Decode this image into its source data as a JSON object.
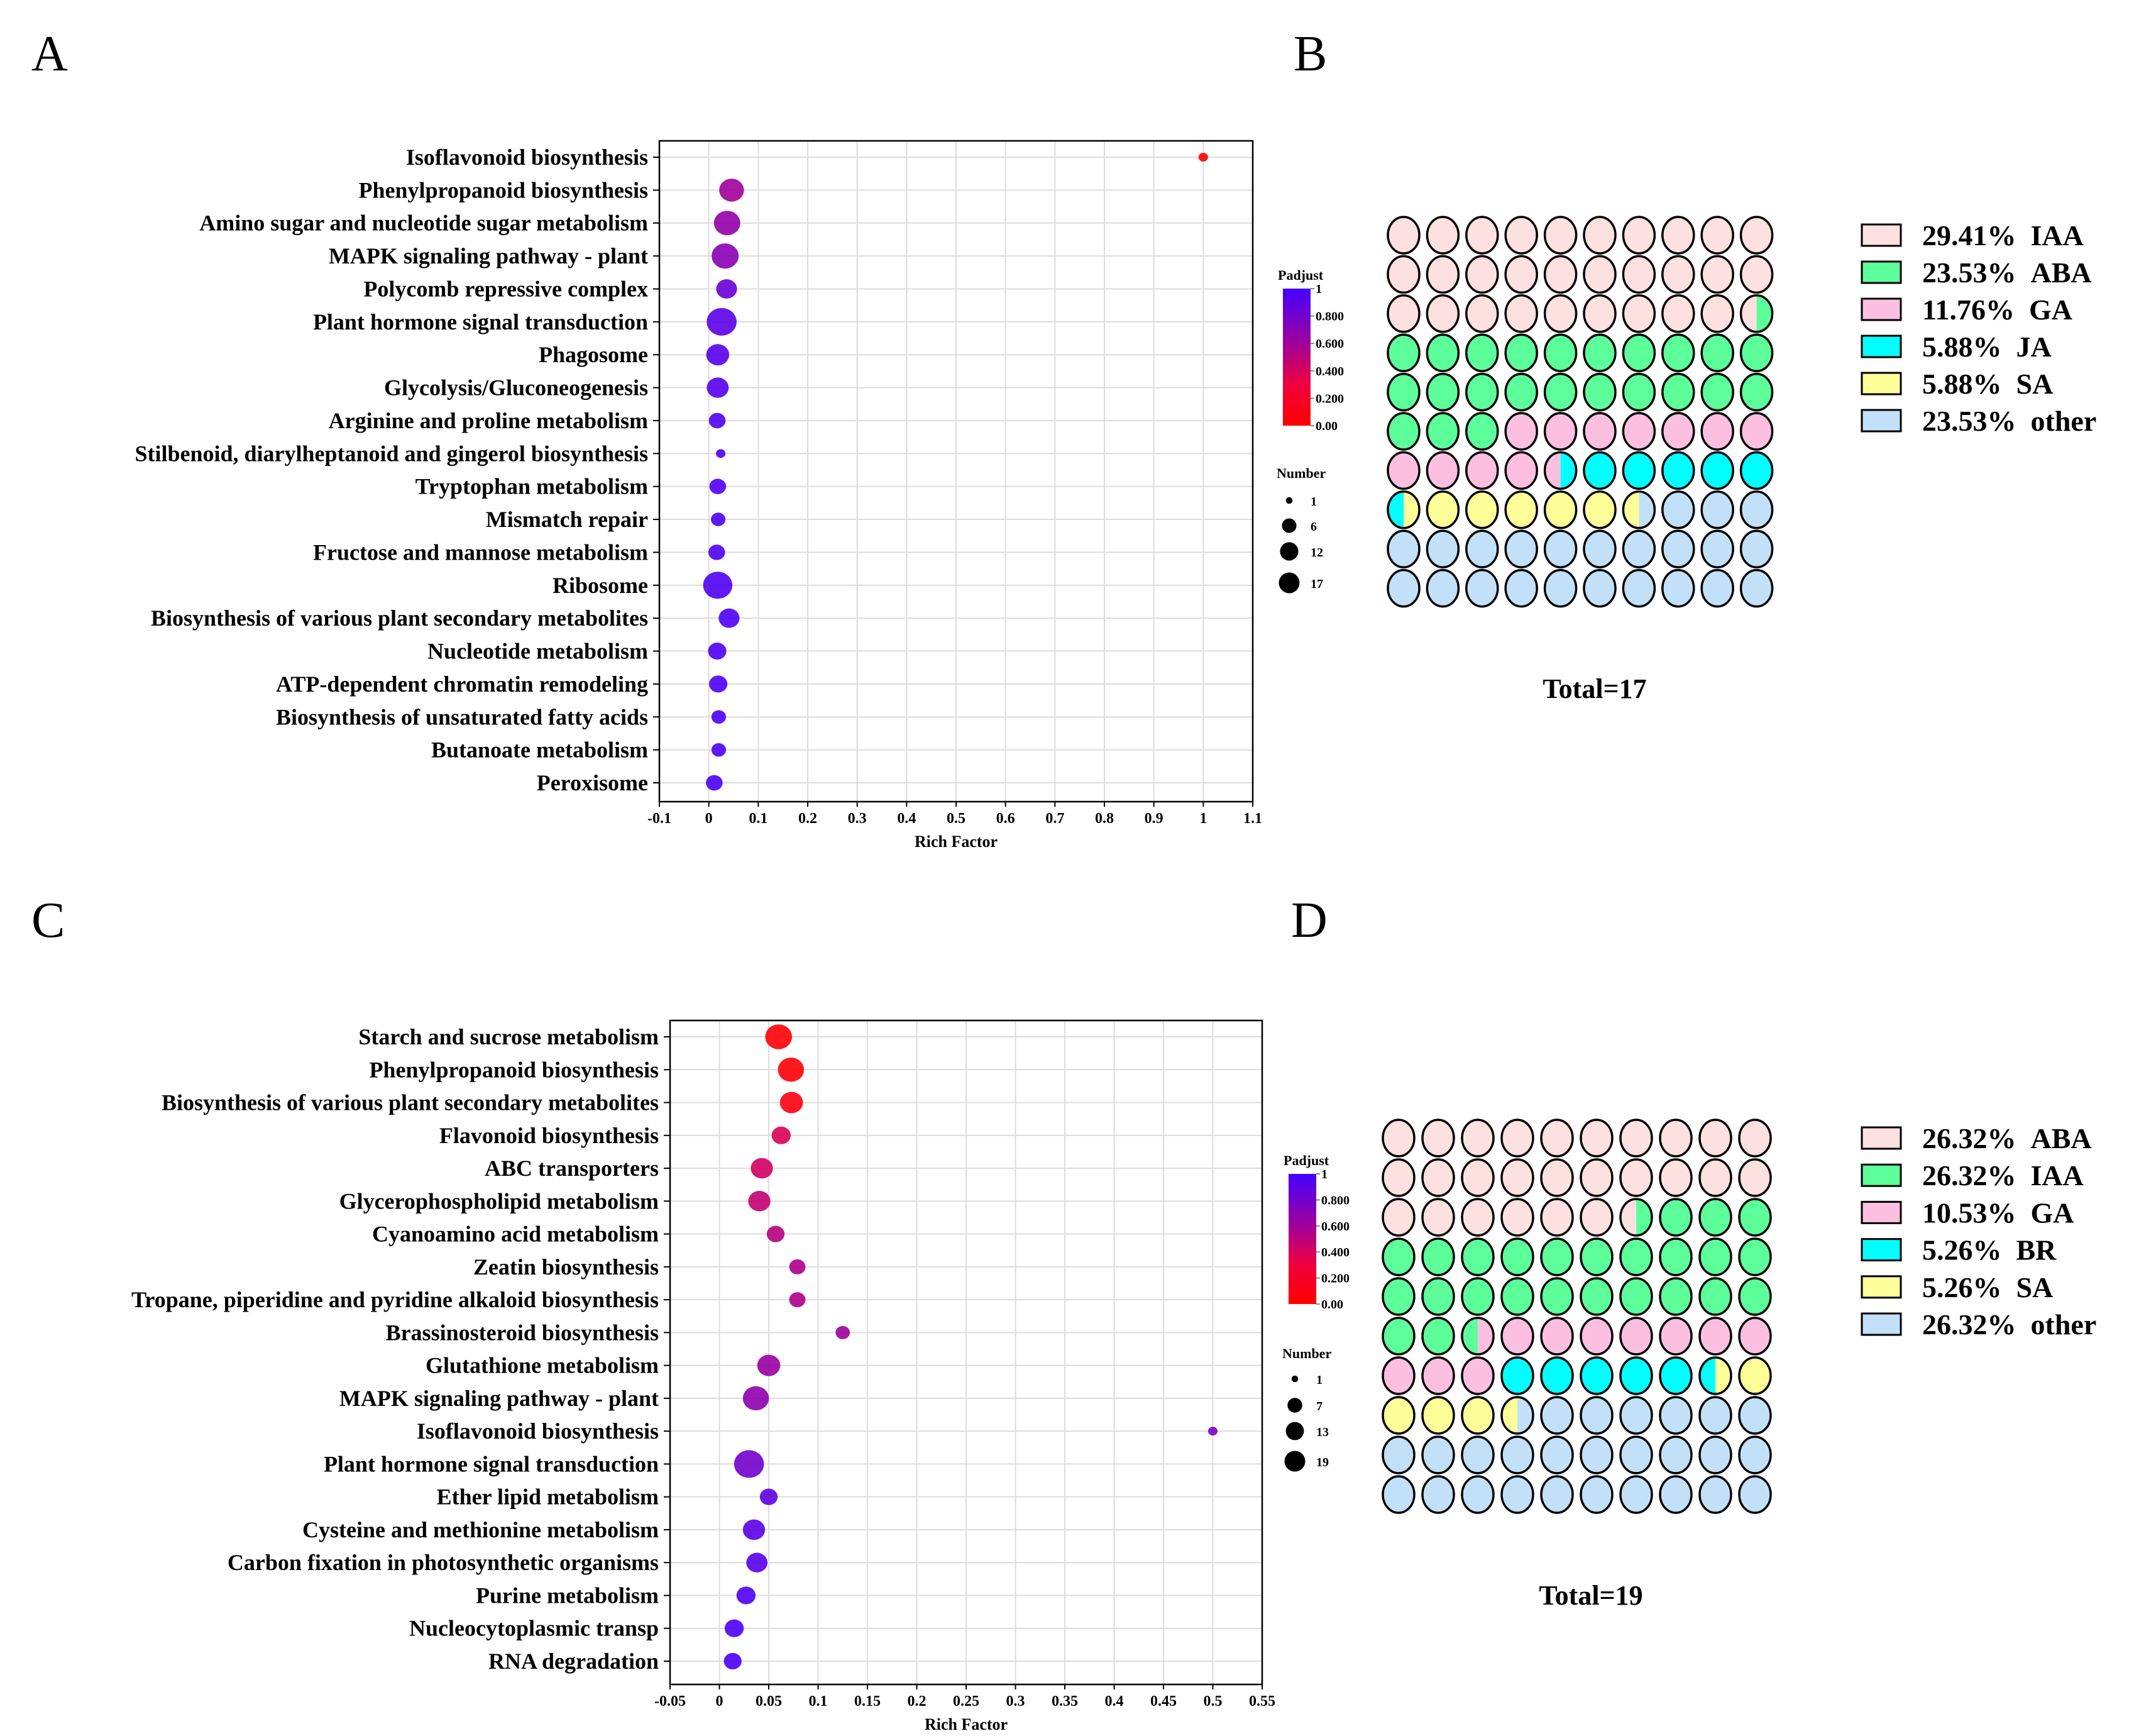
{
  "panels": {
    "a": "A",
    "b": "B",
    "c": "C",
    "d": "D"
  },
  "colors": {
    "padj_low": "#ff0000",
    "padj_high": "#4400ff",
    "IAA_or_first": "#fde0e0",
    "green": "#5cff9a",
    "pink": "#fcbfe0",
    "cyan": "#00ffff",
    "yellow": "#ffff99",
    "other": "#c2e0f7"
  },
  "chart_data": [
    {
      "id": "A",
      "type": "scatter",
      "xlabel": "Rich Factor",
      "xlim": [
        -0.1,
        1.1
      ],
      "xticks": [
        "-0.1",
        "0",
        "0.1",
        "0.2",
        "0.3",
        "0.4",
        "0.5",
        "0.6",
        "0.7",
        "0.8",
        "0.9",
        "1",
        "1.1"
      ],
      "color_legend": {
        "title": "Padjust",
        "ticks": [
          "1",
          "0.800",
          "0.600",
          "0.400",
          "0.200",
          "0.00"
        ]
      },
      "size_legend": {
        "title": "Number",
        "values": [
          1,
          6,
          12,
          17
        ]
      },
      "points": [
        {
          "term": "Isoflavonoid biosynthesis",
          "rich": 1.0,
          "number": 1,
          "padj": 0.0
        },
        {
          "term": "Phenylpropanoid biosynthesis",
          "rich": 0.046,
          "number": 10,
          "padj": 0.6
        },
        {
          "term": "Amino sugar and nucleotide sugar metabolism",
          "rich": 0.037,
          "number": 12,
          "padj": 0.66
        },
        {
          "term": "MAPK signaling pathway - plant",
          "rich": 0.033,
          "number": 13,
          "padj": 0.7
        },
        {
          "term": "Polycomb repressive complex",
          "rich": 0.036,
          "number": 6,
          "padj": 0.85
        },
        {
          "term": "Plant hormone signal transduction",
          "rich": 0.026,
          "number": 17,
          "padj": 0.9
        },
        {
          "term": "Phagosome",
          "rich": 0.018,
          "number": 8,
          "padj": 0.92
        },
        {
          "term": "Glycolysis/Gluconeogenesis",
          "rich": 0.018,
          "number": 7,
          "padj": 0.93
        },
        {
          "term": "Arginine and proline metabolism",
          "rich": 0.017,
          "number": 3,
          "padj": 0.94
        },
        {
          "term": "Stilbenoid, diarylheptanoid and gingerol biosynthesis",
          "rich": 0.024,
          "number": 1,
          "padj": 0.94
        },
        {
          "term": "Tryptophan metabolism",
          "rich": 0.018,
          "number": 3,
          "padj": 0.95
        },
        {
          "term": "Mismatch repair",
          "rich": 0.019,
          "number": 2,
          "padj": 0.95
        },
        {
          "term": "Fructose and mannose metabolism",
          "rich": 0.016,
          "number": 3,
          "padj": 0.95
        },
        {
          "term": "Ribosome",
          "rich": 0.018,
          "number": 16,
          "padj": 0.95
        },
        {
          "term": "Biosynthesis of various plant secondary metabolites",
          "rich": 0.041,
          "number": 6,
          "padj": 0.96
        },
        {
          "term": "Nucleotide metabolism",
          "rich": 0.017,
          "number": 4,
          "padj": 0.96
        },
        {
          "term": "ATP-dependent chromatin remodeling",
          "rich": 0.019,
          "number": 4,
          "padj": 0.97
        },
        {
          "term": "Biosynthesis of unsaturated fatty acids",
          "rich": 0.02,
          "number": 2,
          "padj": 0.97
        },
        {
          "term": "Butanoate metabolism",
          "rich": 0.02,
          "number": 2,
          "padj": 0.97
        },
        {
          "term": "Peroxisome",
          "rich": 0.011,
          "number": 3,
          "padj": 0.97
        }
      ]
    },
    {
      "id": "C",
      "type": "scatter",
      "xlabel": "Rich Factor",
      "xlim": [
        -0.05,
        0.55
      ],
      "xticks": [
        "-0.05",
        "0",
        "0.05",
        "0.1",
        "0.15",
        "0.2",
        "0.25",
        "0.3",
        "0.35",
        "0.4",
        "0.45",
        "0.5",
        "0.55"
      ],
      "color_legend": {
        "title": "Padjust",
        "ticks": [
          "1",
          "0.800",
          "0.600",
          "0.400",
          "0.200",
          "0.00"
        ]
      },
      "size_legend": {
        "title": "Number",
        "values": [
          1,
          7,
          13,
          19
        ]
      },
      "points": [
        {
          "term": "Starch and sucrose metabolism",
          "rich": 0.06,
          "number": 14,
          "padj": 0.02
        },
        {
          "term": "Phenylpropanoid biosynthesis",
          "rich": 0.0725,
          "number": 13,
          "padj": 0.03
        },
        {
          "term": "Biosynthesis of various plant secondary metabolites",
          "rich": 0.073,
          "number": 9,
          "padj": 0.08
        },
        {
          "term": "Flavonoid biosynthesis",
          "rich": 0.0626,
          "number": 5,
          "padj": 0.38
        },
        {
          "term": "ABC transporters",
          "rich": 0.043,
          "number": 8,
          "padj": 0.42
        },
        {
          "term": "Glycerophospholipid metabolism",
          "rich": 0.0405,
          "number": 8,
          "padj": 0.47
        },
        {
          "term": "Cyanoamino acid metabolism",
          "rich": 0.057,
          "number": 4,
          "padj": 0.52
        },
        {
          "term": "Zeatin biosynthesis",
          "rich": 0.079,
          "number": 3,
          "padj": 0.55
        },
        {
          "term": "Tropane, piperidine and pyridine alkaloid biosynthesis",
          "rich": 0.079,
          "number": 3,
          "padj": 0.55
        },
        {
          "term": "Brassinosteroid biosynthesis",
          "rich": 0.125,
          "number": 2,
          "padj": 0.6
        },
        {
          "term": "Glutathione metabolism",
          "rich": 0.05,
          "number": 9,
          "padj": 0.62
        },
        {
          "term": "MAPK signaling pathway - plant",
          "rich": 0.037,
          "number": 13,
          "padj": 0.68
        },
        {
          "term": "Isoflavonoid biosynthesis",
          "rich": 0.5,
          "number": 1,
          "padj": 0.75
        },
        {
          "term": "Plant hormone signal transduction",
          "rich": 0.03,
          "number": 19,
          "padj": 0.8
        },
        {
          "term": "Ether lipid metabolism",
          "rich": 0.05,
          "number": 4,
          "padj": 0.88
        },
        {
          "term": "Cysteine and methionine metabolism",
          "rich": 0.035,
          "number": 8,
          "padj": 0.9
        },
        {
          "term": "Carbon fixation in photosynthetic organisms",
          "rich": 0.038,
          "number": 7,
          "padj": 0.92
        },
        {
          "term": "Purine metabolism",
          "rich": 0.027,
          "number": 5,
          "padj": 0.95
        },
        {
          "term": "Nucleocytoplasmic transp",
          "rich": 0.015,
          "number": 5,
          "padj": 0.97
        },
        {
          "term": "RNA degradation",
          "rich": 0.0135,
          "number": 4,
          "padj": 0.97
        }
      ]
    },
    {
      "id": "B",
      "type": "waffle",
      "total": "Total=17",
      "categories": [
        {
          "label": "29.41%  IAA",
          "pct": 29.41,
          "color": "#fde0e0"
        },
        {
          "label": "23.53%  ABA",
          "pct": 23.53,
          "color": "#5cff9a"
        },
        {
          "label": "11.76%  GA",
          "pct": 11.76,
          "color": "#fcbfe0"
        },
        {
          "label": "5.88%  JA",
          "pct": 5.88,
          "color": "#00ffff"
        },
        {
          "label": "5.88%  SA",
          "pct": 5.88,
          "color": "#ffff99"
        },
        {
          "label": "23.53%  other",
          "pct": 23.53,
          "color": "#c2e0f7"
        }
      ]
    },
    {
      "id": "D",
      "type": "waffle",
      "total": "Total=19",
      "categories": [
        {
          "label": "26.32%  ABA",
          "pct": 26.32,
          "color": "#fde0e0"
        },
        {
          "label": "26.32%  IAA",
          "pct": 26.32,
          "color": "#5cff9a"
        },
        {
          "label": "10.53%  GA",
          "pct": 10.53,
          "color": "#fcbfe0"
        },
        {
          "label": "5.26%  BR",
          "pct": 5.26,
          "color": "#00ffff"
        },
        {
          "label": "5.26%  SA",
          "pct": 5.26,
          "color": "#ffff99"
        },
        {
          "label": "26.32%  other",
          "pct": 26.32,
          "color": "#c2e0f7"
        }
      ]
    }
  ]
}
